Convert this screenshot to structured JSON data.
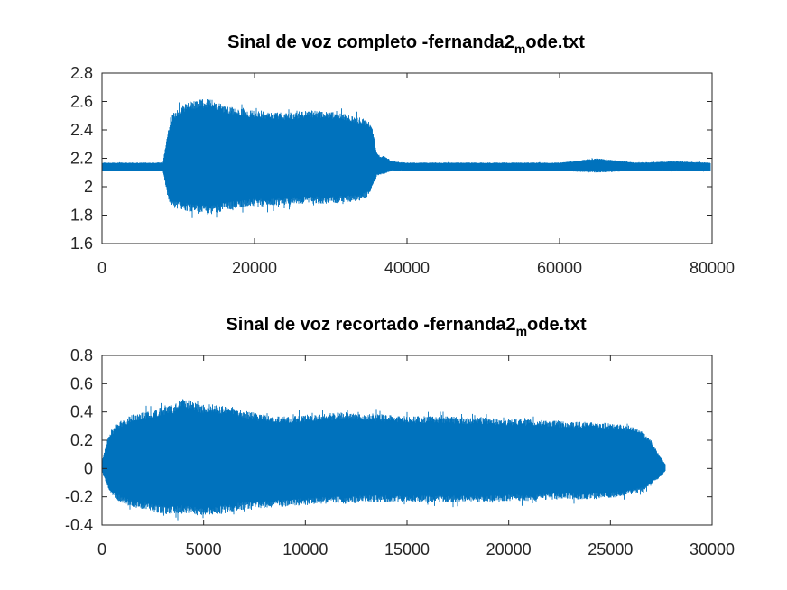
{
  "chart_data": [
    {
      "type": "line",
      "title": {
        "prefix": "Sinal de voz completo -fernanda2",
        "subscript": "m",
        "suffix": "ode.txt"
      },
      "xlabel": "",
      "ylabel": "",
      "xlim": [
        0,
        80000
      ],
      "ylim": [
        1.6,
        2.8
      ],
      "xticks": [
        0,
        20000,
        40000,
        60000,
        80000
      ],
      "yticks": [
        1.6,
        1.8,
        2.0,
        2.2,
        2.4,
        2.6,
        2.8
      ],
      "xtick_labels": [
        "0",
        "20000",
        "40000",
        "60000",
        "80000"
      ],
      "ytick_labels": [
        "1.6",
        "1.8",
        "2",
        "2.2",
        "2.4",
        "2.6",
        "2.8"
      ],
      "grid": false,
      "legend": "none",
      "color": "#0072BD",
      "x_end": 79800,
      "envelope": {
        "x": [
          0,
          8000,
          8500,
          9000,
          10000,
          12000,
          14000,
          16000,
          18000,
          20000,
          22000,
          24000,
          26000,
          28000,
          30000,
          32000,
          34000,
          35000,
          35500,
          36000,
          36500,
          37000,
          38000,
          40000,
          50000,
          60000,
          65000,
          70000,
          75000,
          79800
        ],
        "upper": [
          2.17,
          2.17,
          2.34,
          2.5,
          2.56,
          2.61,
          2.62,
          2.58,
          2.55,
          2.54,
          2.53,
          2.52,
          2.53,
          2.54,
          2.53,
          2.51,
          2.49,
          2.46,
          2.4,
          2.25,
          2.21,
          2.22,
          2.18,
          2.17,
          2.17,
          2.17,
          2.2,
          2.17,
          2.18,
          2.17
        ],
        "lower": [
          2.11,
          2.11,
          1.96,
          1.85,
          1.84,
          1.82,
          1.8,
          1.83,
          1.85,
          1.86,
          1.86,
          1.87,
          1.88,
          1.88,
          1.88,
          1.89,
          1.9,
          1.93,
          2.0,
          2.07,
          2.08,
          2.09,
          2.11,
          2.11,
          2.11,
          2.11,
          2.1,
          2.11,
          2.11,
          2.11
        ]
      }
    },
    {
      "type": "line",
      "title": {
        "prefix": "Sinal de voz recortado -fernanda2",
        "subscript": "m",
        "suffix": "ode.txt"
      },
      "xlabel": "",
      "ylabel": "",
      "xlim": [
        0,
        30000
      ],
      "ylim": [
        -0.4,
        0.8
      ],
      "xticks": [
        0,
        5000,
        10000,
        15000,
        20000,
        25000,
        30000
      ],
      "yticks": [
        -0.4,
        -0.2,
        0,
        0.2,
        0.4,
        0.6,
        0.8
      ],
      "xtick_labels": [
        "0",
        "5000",
        "10000",
        "15000",
        "20000",
        "25000",
        "30000"
      ],
      "ytick_labels": [
        "-0.4",
        "-0.2",
        "0",
        "0.2",
        "0.4",
        "0.6",
        "0.8"
      ],
      "grid": false,
      "legend": "none",
      "color": "#0072BD",
      "x_end": 27700,
      "envelope": {
        "x": [
          0,
          300,
          700,
          1500,
          2500,
          3500,
          4000,
          4500,
          5000,
          5500,
          6000,
          7000,
          8000,
          9000,
          10000,
          11000,
          12000,
          13000,
          14000,
          15000,
          16000,
          17000,
          18000,
          19000,
          20000,
          21000,
          22000,
          23000,
          24000,
          25000,
          26000,
          26500,
          27000,
          27300,
          27700
        ],
        "upper": [
          0.05,
          0.22,
          0.32,
          0.38,
          0.42,
          0.45,
          0.5,
          0.47,
          0.45,
          0.46,
          0.44,
          0.41,
          0.38,
          0.37,
          0.38,
          0.39,
          0.4,
          0.39,
          0.38,
          0.37,
          0.37,
          0.37,
          0.36,
          0.36,
          0.35,
          0.35,
          0.34,
          0.33,
          0.33,
          0.32,
          0.3,
          0.27,
          0.2,
          0.12,
          0.03
        ],
        "lower": [
          -0.02,
          -0.15,
          -0.22,
          -0.28,
          -0.31,
          -0.33,
          -0.32,
          -0.33,
          -0.34,
          -0.33,
          -0.32,
          -0.29,
          -0.28,
          -0.27,
          -0.26,
          -0.25,
          -0.25,
          -0.24,
          -0.24,
          -0.24,
          -0.24,
          -0.24,
          -0.24,
          -0.24,
          -0.23,
          -0.23,
          -0.22,
          -0.22,
          -0.22,
          -0.21,
          -0.19,
          -0.17,
          -0.12,
          -0.08,
          -0.02
        ]
      }
    }
  ]
}
